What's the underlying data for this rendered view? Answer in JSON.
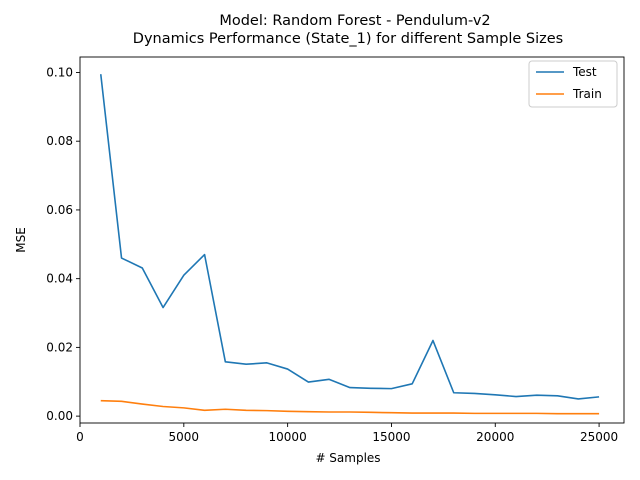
{
  "chart_data": {
    "type": "line",
    "title": "Model: Random Forest - Pendulum-v2",
    "subtitle": "Dynamics Performance (State_1) for different Sample Sizes",
    "xlabel": "# Samples",
    "ylabel": "MSE",
    "xlim": [
      0,
      26200
    ],
    "ylim": [
      -0.002,
      0.1045
    ],
    "xticks": [
      0,
      5000,
      10000,
      15000,
      20000,
      25000
    ],
    "xtick_labels": [
      "0",
      "5000",
      "10000",
      "15000",
      "20000",
      "25000"
    ],
    "yticks": [
      0.0,
      0.02,
      0.04,
      0.06,
      0.08,
      0.1
    ],
    "ytick_labels": [
      "0.00",
      "0.02",
      "0.04",
      "0.06",
      "0.08",
      "0.10"
    ],
    "grid": false,
    "legend_position": "top-right",
    "x": [
      1000,
      2000,
      3000,
      4000,
      5000,
      6000,
      7000,
      8000,
      9000,
      10000,
      11000,
      12000,
      13000,
      14000,
      15000,
      16000,
      17000,
      18000,
      19000,
      20000,
      21000,
      22000,
      23000,
      24000,
      25000
    ],
    "series": [
      {
        "name": "Test",
        "color": "#1f77b4",
        "values": [
          0.0995,
          0.046,
          0.0431,
          0.0316,
          0.041,
          0.047,
          0.0158,
          0.0151,
          0.0155,
          0.0137,
          0.0099,
          0.0107,
          0.0083,
          0.0081,
          0.008,
          0.0094,
          0.022,
          0.0068,
          0.0066,
          0.0062,
          0.0057,
          0.0061,
          0.0059,
          0.005,
          0.0056
        ]
      },
      {
        "name": "Train",
        "color": "#ff7f0e",
        "values": [
          0.0045,
          0.0043,
          0.0035,
          0.0028,
          0.0024,
          0.0017,
          0.002,
          0.0017,
          0.0016,
          0.0014,
          0.0013,
          0.0012,
          0.0012,
          0.0011,
          0.001,
          0.0009,
          0.0009,
          0.0009,
          0.0008,
          0.0008,
          0.0008,
          0.0008,
          0.0007,
          0.0007,
          0.0007
        ]
      }
    ]
  }
}
